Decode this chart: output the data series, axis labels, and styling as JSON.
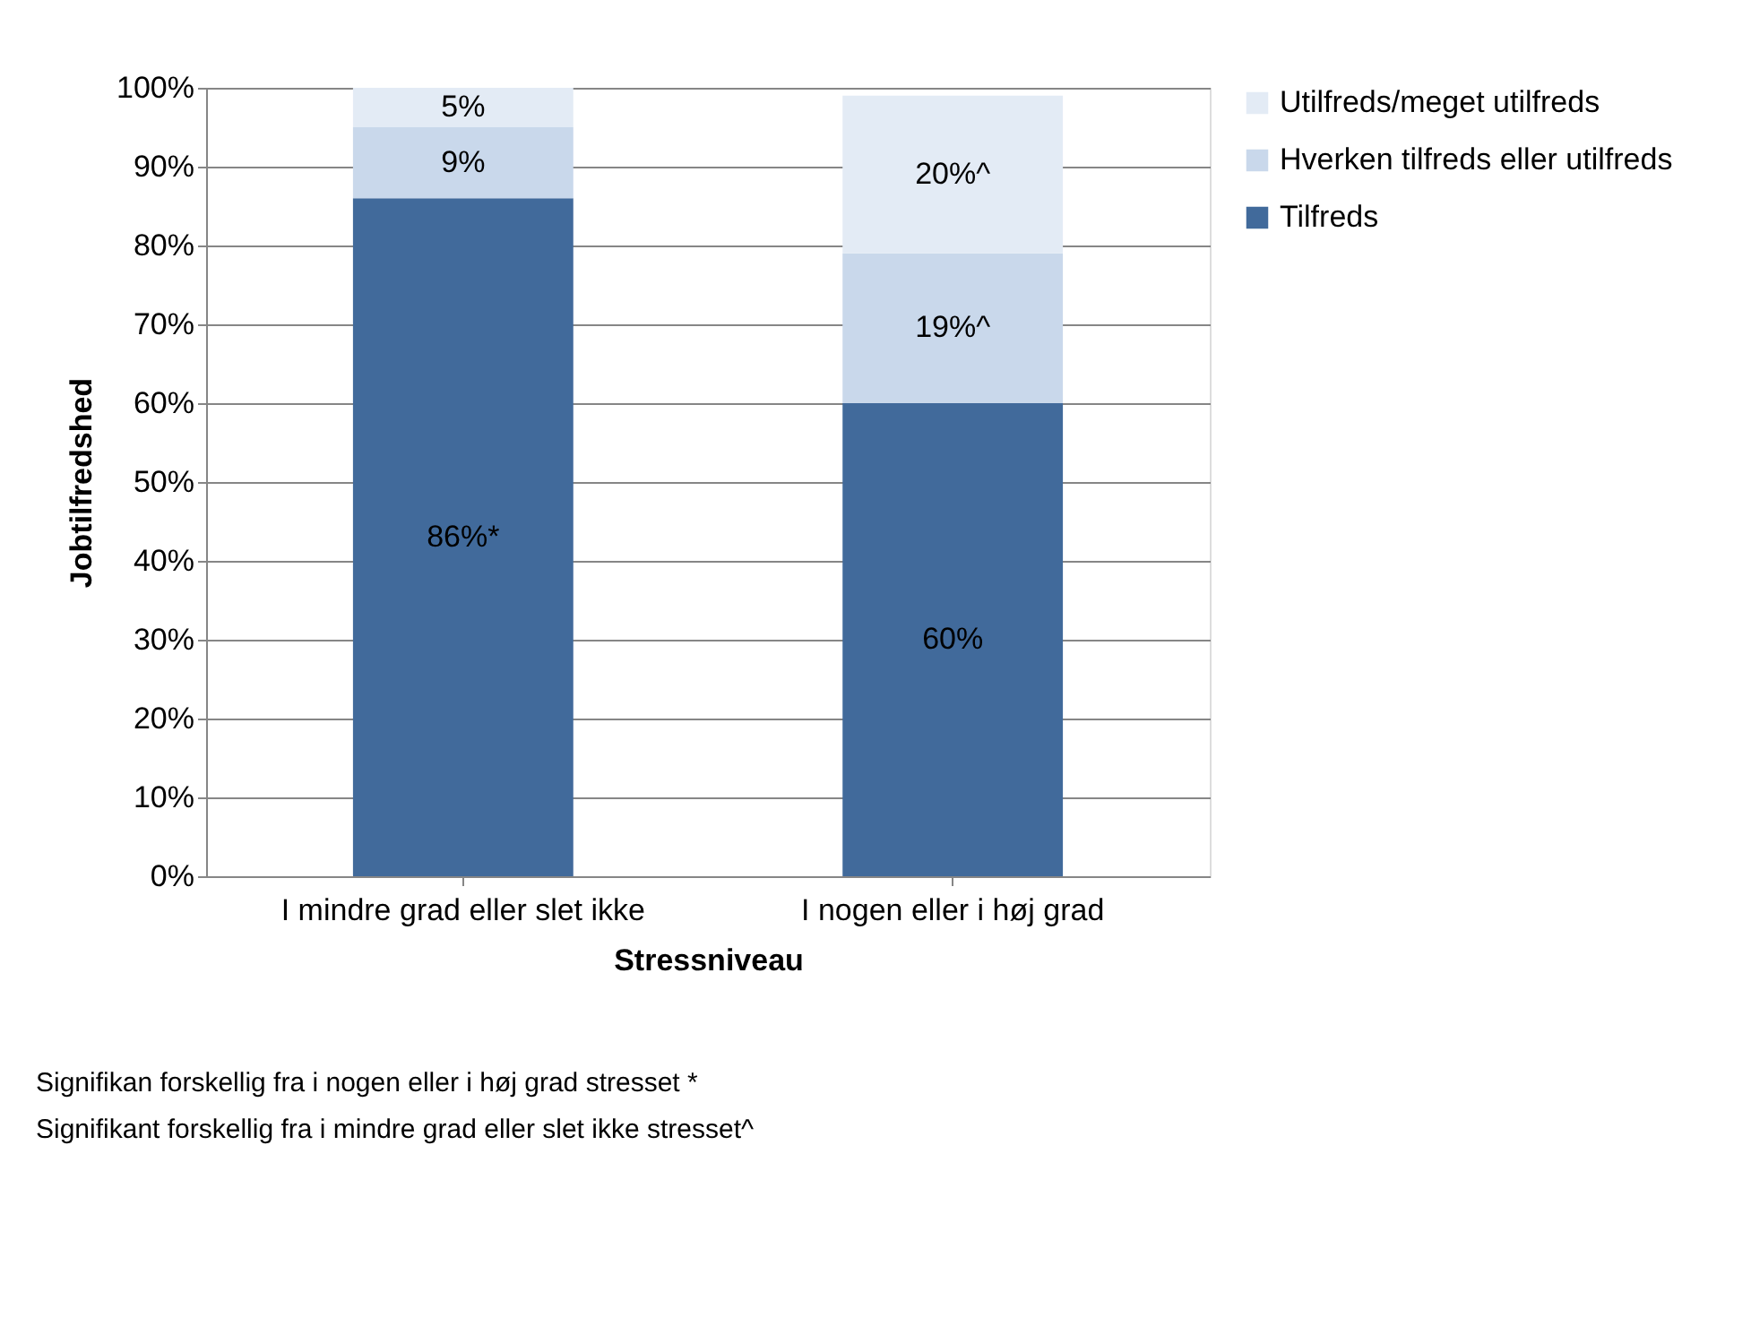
{
  "chart_data": {
    "type": "bar",
    "stacked": true,
    "xlabel": "Stressniveau",
    "ylabel": "Jobtilfredshed",
    "categories": [
      "I mindre grad eller slet ikke",
      "I nogen eller i høj grad"
    ],
    "series": [
      {
        "name": "Tilfreds",
        "color": "#416a9b",
        "values": [
          86,
          60
        ],
        "value_labels": [
          "86%*",
          "60%"
        ]
      },
      {
        "name": "Hverken tilfreds eller utilfreds",
        "color": "#c9d8eb",
        "values": [
          9,
          19
        ],
        "value_labels": [
          "9%",
          "19%^"
        ]
      },
      {
        "name": "Utilfreds/meget utilfreds",
        "color": "#e3ebf5",
        "values": [
          5,
          20
        ],
        "value_labels": [
          "5%",
          "20%^"
        ]
      }
    ],
    "ylim": [
      0,
      100
    ],
    "yticks": [
      {
        "value": 0,
        "label": "0%"
      },
      {
        "value": 10,
        "label": "10%"
      },
      {
        "value": 20,
        "label": "20%"
      },
      {
        "value": 30,
        "label": "30%"
      },
      {
        "value": 40,
        "label": "40%"
      },
      {
        "value": 50,
        "label": "50%"
      },
      {
        "value": 60,
        "label": "60%"
      },
      {
        "value": 70,
        "label": "70%"
      },
      {
        "value": 80,
        "label": "80%"
      },
      {
        "value": 90,
        "label": "90%"
      },
      {
        "value": 100,
        "label": "100%"
      }
    ],
    "grid": "y",
    "legend": "right",
    "annotations": [
      "Signifikan forskellig fra i nogen eller i høj grad stresset *",
      "Signifikant forskellig fra i mindre  grad eller slet ikke stresset^"
    ]
  }
}
